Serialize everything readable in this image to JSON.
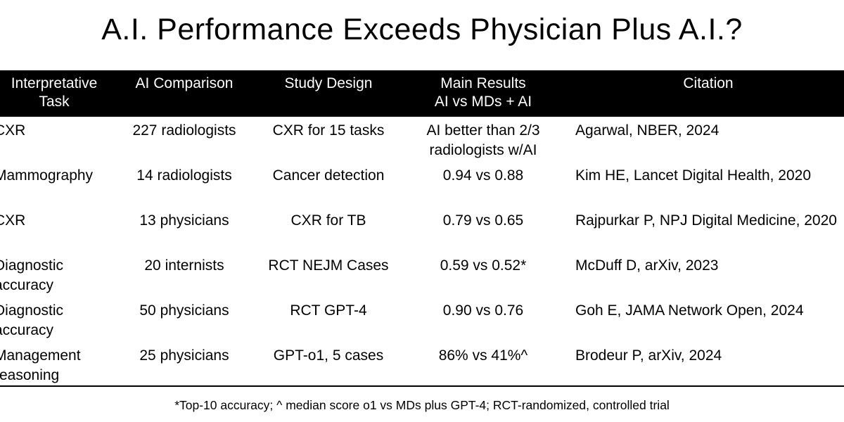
{
  "title": "A.I. Performance Exceeds Physician Plus A.I.?",
  "table": {
    "headers": {
      "task_line1": "Interpretative",
      "task_line2": "Task",
      "comparison": "AI Comparison",
      "design": "Study Design",
      "results_line1": "Main Results",
      "results_line2": "AI vs MDs + AI",
      "citation": "Citation"
    },
    "rows": [
      {
        "task_line1": "CXR",
        "task_line2": "",
        "comparison": "227 radiologists",
        "design": "CXR for 15 tasks",
        "results_line1": "AI better than 2/3",
        "results_line2": "radiologists w/AI",
        "citation": "Agarwal, NBER, 2024"
      },
      {
        "task_line1": "Mammography",
        "task_line2": "",
        "comparison": "14 radiologists",
        "design": "Cancer detection",
        "results_line1": "0.94 vs 0.88",
        "results_line2": "",
        "citation": "Kim HE, Lancet Digital Health, 2020"
      },
      {
        "task_line1": "CXR",
        "task_line2": "",
        "comparison": "13 physicians",
        "design": "CXR for TB",
        "results_line1": "0.79 vs 0.65",
        "results_line2": "",
        "citation": "Rajpurkar P, NPJ Digital Medicine, 2020"
      },
      {
        "task_line1": "Diagnostic",
        "task_line2": "accuracy",
        "comparison": "20 internists",
        "design": "RCT NEJM Cases",
        "results_line1": "0.59 vs 0.52*",
        "results_line2": "",
        "citation": "McDuff  D, arXiv, 2023"
      },
      {
        "task_line1": "Diagnostic",
        "task_line2": "accuracy",
        "comparison": "50 physicians",
        "design": "RCT GPT-4",
        "results_line1": "0.90 vs 0.76",
        "results_line2": "",
        "citation": "Goh E, JAMA Network Open, 2024"
      },
      {
        "task_line1": "Management",
        "task_line2": "reasoning",
        "comparison": "25 physicians",
        "design": "GPT-o1, 5 cases",
        "results_line1": "86% vs 41%^",
        "results_line2": "",
        "citation": "Brodeur P, arXiv, 2024"
      }
    ]
  },
  "footnote": "*Top-10 accuracy; ^ median score o1 vs MDs plus GPT-4; RCT-randomized, controlled trial",
  "colors": {
    "header_background": "#000000",
    "header_text": "#ffffff",
    "body_text": "#000000",
    "page_background": "#ffffff"
  }
}
